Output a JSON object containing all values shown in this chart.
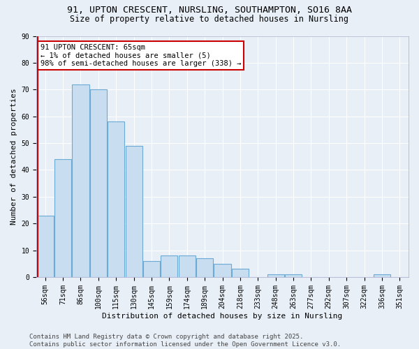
{
  "title_line1": "91, UPTON CRESCENT, NURSLING, SOUTHAMPTON, SO16 8AA",
  "title_line2": "Size of property relative to detached houses in Nursling",
  "xlabel": "Distribution of detached houses by size in Nursling",
  "ylabel": "Number of detached properties",
  "categories": [
    "56sqm",
    "71sqm",
    "86sqm",
    "100sqm",
    "115sqm",
    "130sqm",
    "145sqm",
    "159sqm",
    "174sqm",
    "189sqm",
    "204sqm",
    "218sqm",
    "233sqm",
    "248sqm",
    "263sqm",
    "277sqm",
    "292sqm",
    "307sqm",
    "322sqm",
    "336sqm",
    "351sqm"
  ],
  "values": [
    23,
    44,
    72,
    70,
    58,
    49,
    6,
    8,
    8,
    7,
    5,
    3,
    0,
    1,
    1,
    0,
    0,
    0,
    0,
    1,
    0
  ],
  "bar_color": "#c8ddef",
  "bar_edge_color": "#6aaad4",
  "annotation_text": "91 UPTON CRESCENT: 65sqm\n← 1% of detached houses are smaller (5)\n98% of semi-detached houses are larger (338) →",
  "annotation_box_color": "#ffffff",
  "annotation_box_edge_color": "#cc0000",
  "ylim": [
    0,
    90
  ],
  "yticks": [
    0,
    10,
    20,
    30,
    40,
    50,
    60,
    70,
    80,
    90
  ],
  "background_color": "#e8eff7",
  "grid_color": "#ffffff",
  "footer_text": "Contains HM Land Registry data © Crown copyright and database right 2025.\nContains public sector information licensed under the Open Government Licence v3.0.",
  "title_fontsize": 9.5,
  "subtitle_fontsize": 8.5,
  "axis_label_fontsize": 8,
  "tick_fontsize": 7,
  "annotation_fontsize": 7.5,
  "footer_fontsize": 6.5
}
